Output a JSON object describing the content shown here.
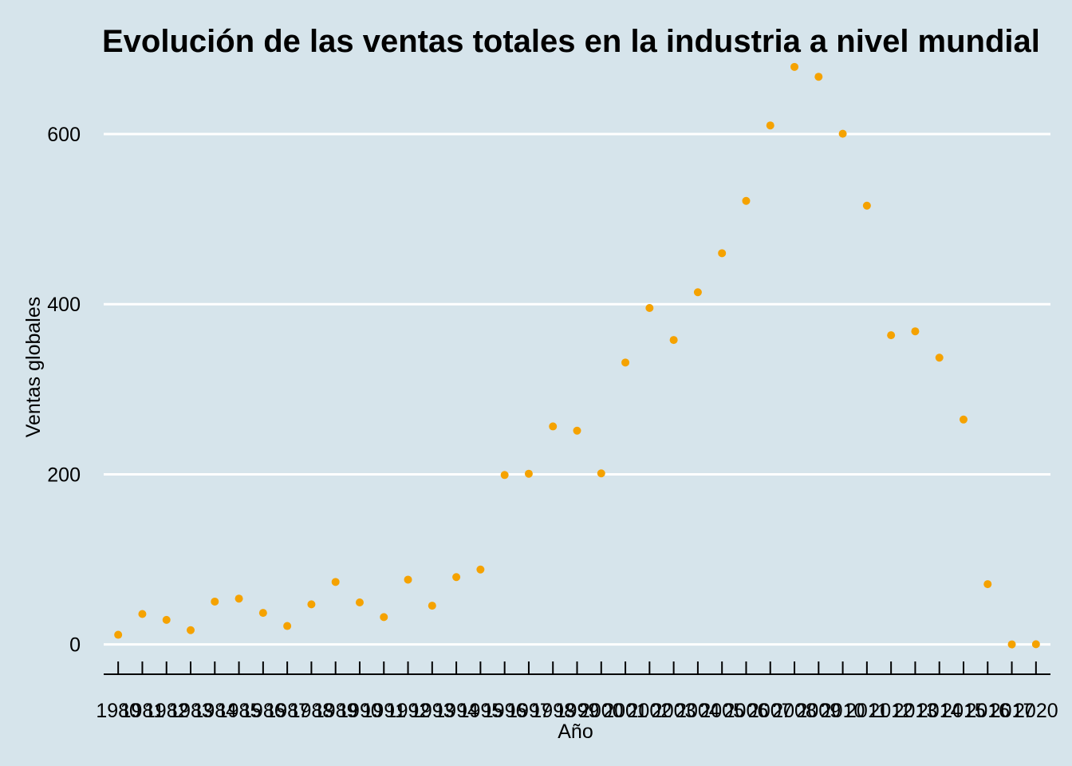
{
  "chart_data": {
    "type": "scatter",
    "title": "Evolución de las ventas totales en la industria a nivel mundial",
    "xlabel": "Año",
    "ylabel": "Ventas globales",
    "x": [
      1980,
      1981,
      1982,
      1983,
      1984,
      1985,
      1986,
      1987,
      1988,
      1989,
      1990,
      1991,
      1992,
      1993,
      1994,
      1995,
      1996,
      1997,
      1998,
      1999,
      2000,
      2001,
      2002,
      2003,
      2004,
      2005,
      2006,
      2007,
      2008,
      2009,
      2010,
      2011,
      2012,
      2013,
      2014,
      2015,
      2016,
      2017,
      2020
    ],
    "y": [
      11.4,
      35.8,
      28.9,
      16.8,
      50.4,
      53.9,
      37.1,
      21.7,
      47.2,
      73.5,
      49.4,
      32.2,
      76.2,
      45.6,
      79.2,
      88.1,
      199.2,
      200.7,
      256.3,
      251.3,
      201.1,
      331.4,
      395.5,
      357.9,
      414.0,
      459.9,
      521.4,
      610.1,
      678.9,
      667.3,
      600.3,
      515.8,
      363.5,
      368.1,
      337.1,
      264.4,
      70.9,
      0.1,
      0.3
    ],
    "ylim": [
      -35,
      690
    ],
    "y_ticks": [
      0,
      200,
      400,
      600
    ],
    "grid": "horizontal",
    "point_color": "#f5a200",
    "background_color": "#d6e4eb",
    "grid_color": "#ffffff"
  }
}
